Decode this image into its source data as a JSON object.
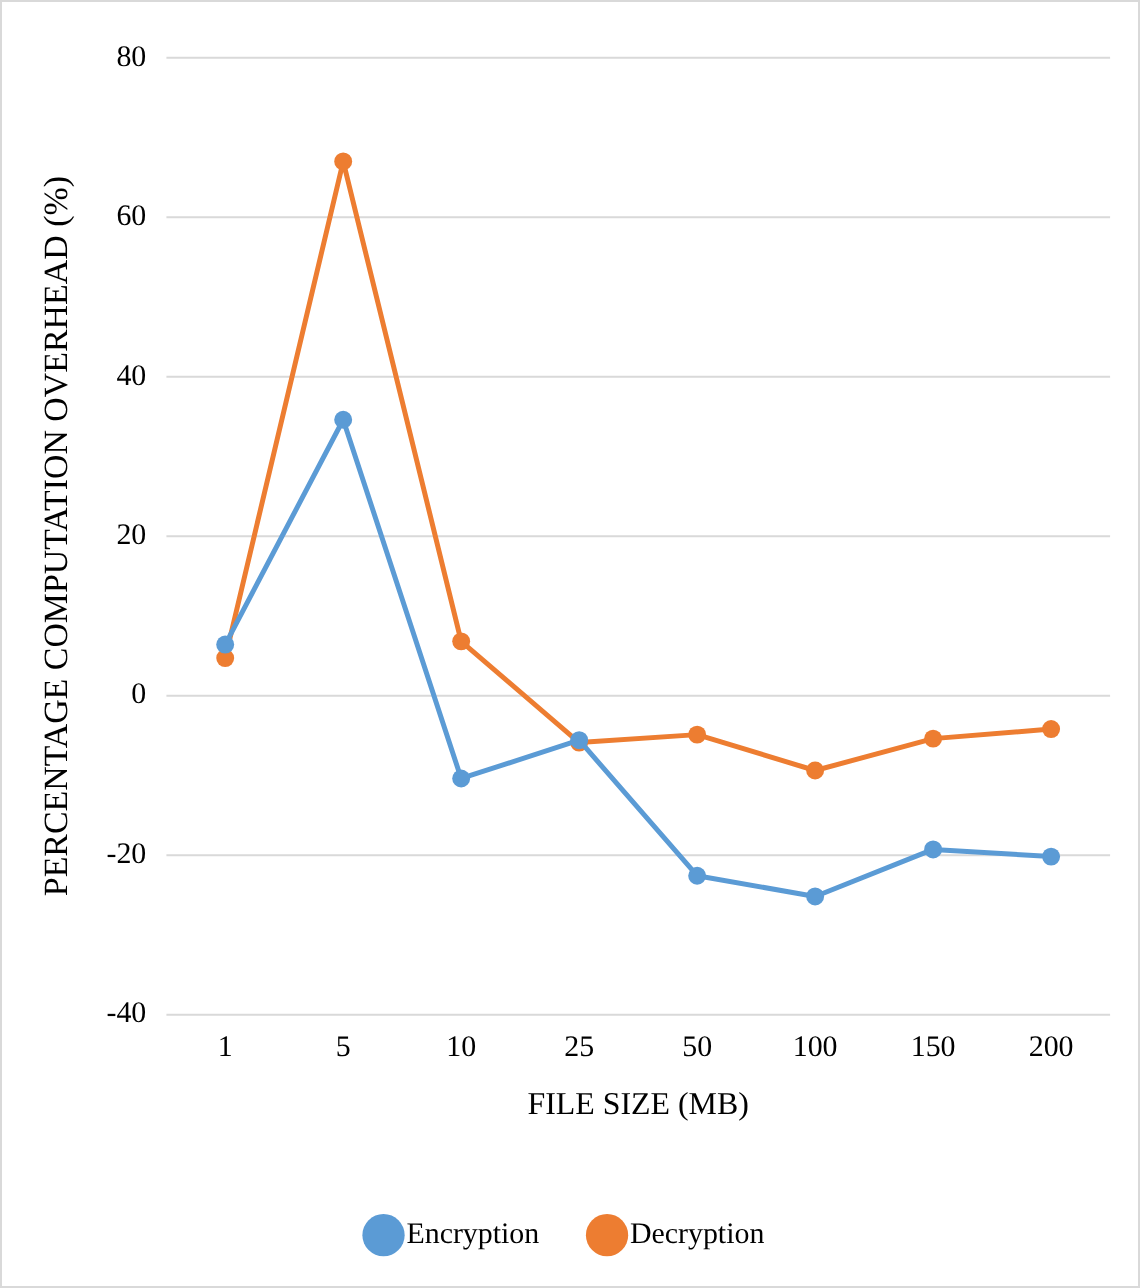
{
  "chart_data": {
    "type": "line",
    "xlabel": "FILE SIZE (MB)",
    "ylabel": "PERCENTAGE COMPUTATION OVERHEAD (%)",
    "categories": [
      "1",
      "5",
      "10",
      "25",
      "50",
      "100",
      "150",
      "200"
    ],
    "series": [
      {
        "name": "Encryption",
        "color": "#5b9bd5",
        "values": [
          6.4,
          34.6,
          -10.4,
          -5.6,
          -22.6,
          -25.2,
          -19.3,
          -20.2
        ]
      },
      {
        "name": "Decryption",
        "color": "#ed7d31",
        "values": [
          4.7,
          67,
          6.8,
          -5.9,
          -4.9,
          -9.4,
          -5.4,
          -4.2
        ]
      }
    ],
    "ylim": [
      -40,
      80
    ],
    "yticks": [
      -40,
      -20,
      0,
      20,
      40,
      60,
      80
    ],
    "grid": "y",
    "legend": "bottom",
    "marker": "circle",
    "line_style": "solid"
  }
}
